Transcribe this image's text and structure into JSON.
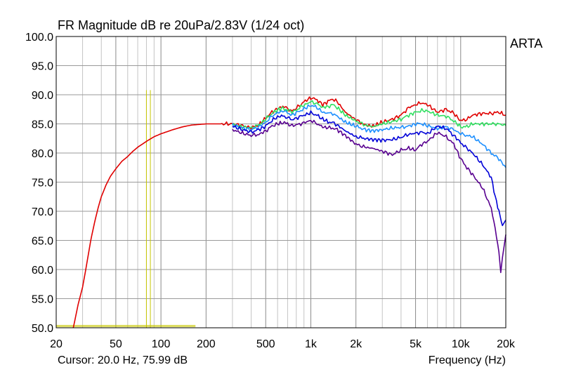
{
  "chart_data": {
    "type": "line",
    "title": "FR Magnitude dB re 20uPa/2.83V (1/24 oct)",
    "brand": "ARTA",
    "cursor_readout": "Cursor: 20.0 Hz, 75.99 dB",
    "xlabel": "Frequency (Hz)",
    "ylabel": "",
    "x_scale": "log",
    "xlim": [
      20,
      20000
    ],
    "ylim": [
      50,
      100
    ],
    "grid": true,
    "x_ticks": [
      {
        "value": 20,
        "label": "20"
      },
      {
        "value": 50,
        "label": "50"
      },
      {
        "value": 100,
        "label": "100"
      },
      {
        "value": 200,
        "label": "200"
      },
      {
        "value": 500,
        "label": "500"
      },
      {
        "value": 1000,
        "label": "1k"
      },
      {
        "value": 2000,
        "label": "2k"
      },
      {
        "value": 5000,
        "label": "5k"
      },
      {
        "value": 10000,
        "label": "10k"
      },
      {
        "value": 20000,
        "label": "20k"
      }
    ],
    "y_ticks": [
      {
        "value": 100,
        "label": "100.0"
      },
      {
        "value": 95,
        "label": "95.0"
      },
      {
        "value": 90,
        "label": "90.0"
      },
      {
        "value": 85,
        "label": "85.0"
      },
      {
        "value": 80,
        "label": "80.0"
      },
      {
        "value": 75,
        "label": "75.0"
      },
      {
        "value": 70,
        "label": "70.0"
      },
      {
        "value": 65,
        "label": "65.0"
      },
      {
        "value": 60,
        "label": "60.0"
      },
      {
        "value": 55,
        "label": "55.0"
      },
      {
        "value": 50,
        "label": "50.0"
      }
    ],
    "marker_lines": {
      "color": "#c8c800",
      "vertical": [
        {
          "x": 80,
          "y": [
            50,
            90.8
          ]
        },
        {
          "x": 85,
          "y": [
            50,
            90.8
          ]
        }
      ],
      "horizontal": [
        {
          "y": 50.4,
          "x": [
            20,
            170
          ]
        },
        {
          "y": 50.2,
          "x": [
            20,
            170
          ]
        }
      ]
    },
    "series": [
      {
        "color": "#e00000",
        "points": [
          [
            26,
            50
          ],
          [
            27,
            52
          ],
          [
            28,
            54
          ],
          [
            29,
            55.5
          ],
          [
            30,
            57
          ],
          [
            32,
            61
          ],
          [
            34,
            65
          ],
          [
            36,
            68
          ],
          [
            38,
            70.5
          ],
          [
            40,
            72.5
          ],
          [
            43,
            74.5
          ],
          [
            46,
            76
          ],
          [
            50,
            77.3
          ],
          [
            55,
            78.6
          ],
          [
            60,
            79.4
          ],
          [
            65,
            80.3
          ],
          [
            70,
            81
          ],
          [
            80,
            82
          ],
          [
            90,
            82.8
          ],
          [
            100,
            83.3
          ],
          [
            120,
            84
          ],
          [
            140,
            84.5
          ],
          [
            160,
            84.8
          ],
          [
            200,
            85
          ],
          [
            250,
            85
          ],
          [
            300,
            85
          ],
          [
            350,
            84.7
          ],
          [
            400,
            84.3
          ],
          [
            450,
            84.8
          ],
          [
            500,
            86
          ],
          [
            550,
            87
          ],
          [
            600,
            87.6
          ],
          [
            650,
            88
          ],
          [
            700,
            87.6
          ],
          [
            750,
            87.2
          ],
          [
            800,
            87.7
          ],
          [
            900,
            88.8
          ],
          [
            1000,
            89.5
          ],
          [
            1100,
            89.1
          ],
          [
            1200,
            88.3
          ],
          [
            1300,
            88.8
          ],
          [
            1400,
            89.3
          ],
          [
            1500,
            88.8
          ],
          [
            1700,
            87
          ],
          [
            2000,
            85.7
          ],
          [
            2300,
            84.8
          ],
          [
            2600,
            84.6
          ],
          [
            3000,
            85.3
          ],
          [
            3500,
            85.8
          ],
          [
            4000,
            86.5
          ],
          [
            4500,
            87.8
          ],
          [
            5000,
            88.3
          ],
          [
            5500,
            88.6
          ],
          [
            6000,
            88.3
          ],
          [
            7000,
            87
          ],
          [
            8000,
            87.5
          ],
          [
            9000,
            86.8
          ],
          [
            10000,
            85.5
          ],
          [
            11000,
            85.8
          ],
          [
            12000,
            86.5
          ],
          [
            14000,
            86.8
          ],
          [
            16000,
            86.8
          ],
          [
            18000,
            87
          ],
          [
            20000,
            86.5
          ]
        ]
      },
      {
        "color": "#30e060",
        "points": [
          [
            300,
            84.9
          ],
          [
            350,
            84.5
          ],
          [
            400,
            84.3
          ],
          [
            450,
            84.8
          ],
          [
            500,
            85.8
          ],
          [
            550,
            86.8
          ],
          [
            600,
            87.4
          ],
          [
            650,
            87.7
          ],
          [
            700,
            87.4
          ],
          [
            750,
            87
          ],
          [
            800,
            87.4
          ],
          [
            900,
            88.2
          ],
          [
            1000,
            88.8
          ],
          [
            1100,
            88.5
          ],
          [
            1200,
            87.8
          ],
          [
            1300,
            88
          ],
          [
            1400,
            88.3
          ],
          [
            1500,
            87.8
          ],
          [
            1700,
            86.5
          ],
          [
            2000,
            85.5
          ],
          [
            2300,
            84.8
          ],
          [
            2600,
            84.5
          ],
          [
            3000,
            85
          ],
          [
            3500,
            85.4
          ],
          [
            4000,
            85.8
          ],
          [
            4500,
            86.5
          ],
          [
            5000,
            87
          ],
          [
            5500,
            87.3
          ],
          [
            6000,
            87.2
          ],
          [
            7000,
            86.5
          ],
          [
            8000,
            86.3
          ],
          [
            9000,
            85.5
          ],
          [
            10000,
            84.5
          ],
          [
            11000,
            84.5
          ],
          [
            12000,
            85
          ],
          [
            14000,
            85
          ],
          [
            16000,
            85
          ],
          [
            18000,
            85
          ],
          [
            20000,
            84.7
          ]
        ]
      },
      {
        "color": "#1e90ff",
        "points": [
          [
            300,
            84.8
          ],
          [
            350,
            84.3
          ],
          [
            400,
            84
          ],
          [
            450,
            84.5
          ],
          [
            500,
            85.3
          ],
          [
            550,
            86.3
          ],
          [
            600,
            86.9
          ],
          [
            650,
            87.2
          ],
          [
            700,
            86.9
          ],
          [
            750,
            86.5
          ],
          [
            800,
            86.9
          ],
          [
            900,
            87.6
          ],
          [
            1000,
            88.2
          ],
          [
            1100,
            87.8
          ],
          [
            1200,
            87
          ],
          [
            1300,
            86.8
          ],
          [
            1400,
            86.8
          ],
          [
            1500,
            86.3
          ],
          [
            1700,
            85.3
          ],
          [
            2000,
            84.6
          ],
          [
            2300,
            84
          ],
          [
            2600,
            83.8
          ],
          [
            3000,
            84
          ],
          [
            3500,
            84.3
          ],
          [
            4000,
            84.4
          ],
          [
            4500,
            84.6
          ],
          [
            5000,
            85
          ],
          [
            5500,
            85
          ],
          [
            6000,
            84.7
          ],
          [
            7000,
            84.2
          ],
          [
            8000,
            84.5
          ],
          [
            9000,
            84
          ],
          [
            10000,
            83.3
          ],
          [
            11000,
            83
          ],
          [
            12000,
            82.8
          ],
          [
            14000,
            81.5
          ],
          [
            16000,
            80
          ],
          [
            18000,
            79
          ],
          [
            20000,
            77.5
          ]
        ]
      },
      {
        "color": "#0000d8",
        "points": [
          [
            300,
            84.6
          ],
          [
            350,
            84
          ],
          [
            400,
            83.6
          ],
          [
            450,
            84
          ],
          [
            500,
            84.6
          ],
          [
            550,
            85.6
          ],
          [
            600,
            86.2
          ],
          [
            650,
            86.4
          ],
          [
            700,
            86.1
          ],
          [
            750,
            85.7
          ],
          [
            800,
            86
          ],
          [
            900,
            86.5
          ],
          [
            1000,
            86.9
          ],
          [
            1100,
            86.5
          ],
          [
            1200,
            85.8
          ],
          [
            1300,
            85.4
          ],
          [
            1400,
            85.2
          ],
          [
            1500,
            84.8
          ],
          [
            1700,
            83.8
          ],
          [
            2000,
            82.8
          ],
          [
            2300,
            82.5
          ],
          [
            2600,
            82.3
          ],
          [
            3000,
            82.2
          ],
          [
            3500,
            82.3
          ],
          [
            4000,
            82.7
          ],
          [
            4500,
            83.2
          ],
          [
            5000,
            83.4
          ],
          [
            5500,
            83.6
          ],
          [
            6000,
            83.3
          ],
          [
            7000,
            84.6
          ],
          [
            8000,
            84.2
          ],
          [
            9000,
            83
          ],
          [
            10000,
            81.8
          ],
          [
            11000,
            80.8
          ],
          [
            12000,
            80
          ],
          [
            14000,
            78
          ],
          [
            16000,
            75.8
          ],
          [
            17000,
            72.5
          ],
          [
            18000,
            70
          ],
          [
            19000,
            67.5
          ],
          [
            20000,
            68.5
          ]
        ]
      },
      {
        "color": "#580090",
        "points": [
          [
            300,
            84
          ],
          [
            350,
            83.4
          ],
          [
            400,
            83
          ],
          [
            450,
            83.2
          ],
          [
            500,
            83.8
          ],
          [
            550,
            84.6
          ],
          [
            600,
            85
          ],
          [
            650,
            85.2
          ],
          [
            700,
            85
          ],
          [
            750,
            84.7
          ],
          [
            800,
            84.8
          ],
          [
            900,
            85.2
          ],
          [
            1000,
            85.6
          ],
          [
            1100,
            85
          ],
          [
            1200,
            84.5
          ],
          [
            1300,
            84.3
          ],
          [
            1400,
            84.3
          ],
          [
            1500,
            84
          ],
          [
            1700,
            83
          ],
          [
            2000,
            81.5
          ],
          [
            2300,
            81
          ],
          [
            2600,
            80.8
          ],
          [
            3000,
            80.3
          ],
          [
            3500,
            79.7
          ],
          [
            4000,
            80.5
          ],
          [
            4500,
            80.8
          ],
          [
            5000,
            80.5
          ],
          [
            5500,
            81.5
          ],
          [
            6000,
            82
          ],
          [
            7000,
            83.5
          ],
          [
            8000,
            82.8
          ],
          [
            9000,
            81.5
          ],
          [
            10000,
            79
          ],
          [
            11000,
            77.5
          ],
          [
            12000,
            76.3
          ],
          [
            14000,
            74
          ],
          [
            16000,
            70.5
          ],
          [
            17000,
            67
          ],
          [
            18000,
            63
          ],
          [
            18500,
            59.8
          ],
          [
            19000,
            62
          ],
          [
            20000,
            66
          ]
        ]
      }
    ]
  }
}
